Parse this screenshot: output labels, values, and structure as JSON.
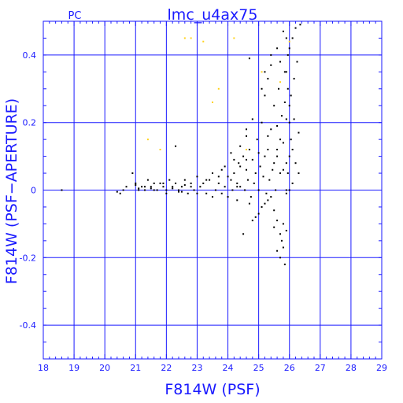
{
  "chart_data": {
    "type": "scatter",
    "title": "lmc_u4ax75",
    "subtitle": "PC",
    "xlabel": "F814W (PSF)",
    "ylabel": "F814W (PSF−APERTURE)",
    "xlim": [
      18,
      29
    ],
    "ylim": [
      -0.5,
      0.5
    ],
    "xticks": [
      "18",
      "19",
      "20",
      "21",
      "22",
      "23",
      "24",
      "25",
      "26",
      "27",
      "28",
      "29"
    ],
    "yticks": [
      "-0.4",
      "-0.2",
      "0",
      "0.2",
      "0.4"
    ],
    "grid": true,
    "colors": {
      "axis": "#1a1aff",
      "points": "#000000",
      "highlight": "#ffd21a",
      "background": "#ffffff"
    },
    "series": [
      {
        "color": "#000000",
        "points": [
          [
            18.6,
            0.0
          ],
          [
            20.4,
            -0.005
          ],
          [
            20.5,
            -0.01
          ],
          [
            20.6,
            0.0
          ],
          [
            20.7,
            0.01
          ],
          [
            20.9,
            0.05
          ],
          [
            21.0,
            0.02
          ],
          [
            21.1,
            0.0
          ],
          [
            21.2,
            0.01
          ],
          [
            21.3,
            0.0
          ],
          [
            21.4,
            0.03
          ],
          [
            21.5,
            0.01
          ],
          [
            21.6,
            0.02
          ],
          [
            21.7,
            0.0
          ],
          [
            21.8,
            0.02
          ],
          [
            21.9,
            0.01
          ],
          [
            22.0,
            0.0
          ],
          [
            22.1,
            0.03
          ],
          [
            22.2,
            0.01
          ],
          [
            22.3,
            0.02
          ],
          [
            22.4,
            0.0
          ],
          [
            22.5,
            0.01
          ],
          [
            22.6,
            0.03
          ],
          [
            22.7,
            -0.01
          ],
          [
            22.8,
            0.02
          ],
          [
            22.9,
            0.0
          ],
          [
            23.0,
            0.04
          ],
          [
            23.1,
            0.01
          ],
          [
            23.2,
            0.02
          ],
          [
            23.3,
            -0.01
          ],
          [
            23.4,
            0.03
          ],
          [
            23.5,
            0.05
          ],
          [
            23.6,
            0.0
          ],
          [
            23.7,
            0.02
          ],
          [
            23.8,
            0.06
          ],
          [
            23.9,
            0.01
          ],
          [
            24.0,
            0.04
          ],
          [
            24.1,
            0.03
          ],
          [
            24.15,
            0.0
          ],
          [
            24.2,
            0.05
          ],
          [
            24.3,
            0.02
          ],
          [
            24.35,
            0.08
          ],
          [
            24.4,
            0.01
          ],
          [
            24.5,
            0.1
          ],
          [
            24.55,
            0.0
          ],
          [
            24.6,
            0.06
          ],
          [
            24.65,
            0.03
          ],
          [
            24.7,
            0.12
          ],
          [
            24.75,
            -0.02
          ],
          [
            24.8,
            0.09
          ],
          [
            24.85,
            0.02
          ],
          [
            24.9,
            0.05
          ],
          [
            24.95,
            0.15
          ],
          [
            25.0,
            0.0
          ],
          [
            25.05,
            0.07
          ],
          [
            25.1,
            0.2
          ],
          [
            25.15,
            0.04
          ],
          [
            25.2,
            0.1
          ],
          [
            25.25,
            -0.01
          ],
          [
            25.3,
            0.12
          ],
          [
            25.35,
            0.03
          ],
          [
            25.4,
            0.18
          ],
          [
            25.45,
            0.06
          ],
          [
            25.5,
            0.25
          ],
          [
            25.55,
            0.0
          ],
          [
            25.6,
            0.1
          ],
          [
            25.65,
            0.3
          ],
          [
            25.7,
            0.05
          ],
          [
            25.75,
            0.22
          ],
          [
            25.8,
            0.14
          ],
          [
            25.85,
            0.35
          ],
          [
            25.9,
            0.08
          ],
          [
            25.95,
            0.4
          ],
          [
            26.0,
            0.2
          ],
          [
            26.05,
            0.28
          ],
          [
            26.1,
            0.45
          ],
          [
            26.15,
            0.33
          ],
          [
            26.2,
            0.48
          ],
          [
            26.25,
            0.38
          ],
          [
            26.3,
            0.17
          ],
          [
            26.35,
            0.49
          ],
          [
            22.3,
            0.13
          ],
          [
            24.1,
            0.11
          ],
          [
            24.3,
            0.01
          ],
          [
            24.6,
            0.18
          ],
          [
            25.2,
            0.28
          ],
          [
            25.4,
            0.37
          ],
          [
            25.8,
            0.47
          ],
          [
            25.9,
            0.45
          ],
          [
            24.5,
            -0.13
          ],
          [
            24.8,
            -0.09
          ],
          [
            25.0,
            -0.07
          ],
          [
            25.2,
            -0.04
          ],
          [
            25.5,
            -0.11
          ],
          [
            25.6,
            -0.18
          ],
          [
            25.7,
            -0.2
          ],
          [
            25.75,
            -0.15
          ],
          [
            25.8,
            -0.17
          ],
          [
            25.85,
            -0.22
          ],
          [
            25.9,
            -0.12
          ],
          [
            25.5,
            -0.06
          ],
          [
            25.3,
            -0.03
          ],
          [
            24.9,
            -0.08
          ],
          [
            25.1,
            -0.05
          ],
          [
            25.6,
            -0.09
          ],
          [
            25.7,
            -0.13
          ],
          [
            25.8,
            -0.1
          ],
          [
            25.4,
            -0.02
          ],
          [
            24.7,
            -0.04
          ],
          [
            24.3,
            -0.03
          ],
          [
            24.0,
            -0.02
          ],
          [
            23.8,
            -0.01
          ],
          [
            23.5,
            -0.02
          ],
          [
            23.0,
            -0.01
          ],
          [
            22.5,
            -0.005
          ],
          [
            22.0,
            -0.01
          ],
          [
            21.5,
            0.005
          ],
          [
            24.4,
            0.07
          ],
          [
            24.6,
            0.09
          ],
          [
            25.0,
            0.11
          ],
          [
            25.3,
            0.16
          ],
          [
            25.6,
            0.19
          ],
          [
            25.9,
            0.21
          ],
          [
            26.0,
            0.25
          ],
          [
            25.95,
            0.3
          ],
          [
            25.85,
            0.26
          ],
          [
            25.7,
            0.15
          ],
          [
            25.6,
            0.12
          ],
          [
            25.5,
            0.08
          ],
          [
            25.8,
            0.06
          ],
          [
            26.0,
            0.1
          ],
          [
            26.1,
            0.12
          ],
          [
            26.2,
            0.08
          ],
          [
            26.3,
            0.05
          ],
          [
            26.0,
            0.0
          ],
          [
            26.1,
            0.02
          ],
          [
            25.9,
            -0.01
          ],
          [
            24.8,
            0.21
          ],
          [
            24.6,
            0.16
          ],
          [
            24.4,
            0.13
          ],
          [
            24.2,
            0.09
          ],
          [
            23.9,
            0.07
          ],
          [
            23.7,
            0.04
          ],
          [
            23.3,
            0.03
          ],
          [
            22.8,
            0.01
          ],
          [
            22.6,
            0.015
          ],
          [
            22.4,
            -0.005
          ],
          [
            22.2,
            0.005
          ],
          [
            21.9,
            0.02
          ],
          [
            21.6,
            0.0
          ],
          [
            21.3,
            0.01
          ],
          [
            21.1,
            0.005
          ],
          [
            21.0,
            0.015
          ],
          [
            25.2,
            0.35
          ],
          [
            25.3,
            0.33
          ],
          [
            25.1,
            0.3
          ],
          [
            25.4,
            0.4
          ],
          [
            25.6,
            0.42
          ],
          [
            25.7,
            0.38
          ],
          [
            25.9,
            0.35
          ],
          [
            26.0,
            0.42
          ],
          [
            24.7,
            0.39
          ],
          [
            25.9,
            0.0
          ],
          [
            25.95,
            0.05
          ],
          [
            26.05,
            0.15
          ],
          [
            26.15,
            0.21
          ]
        ]
      },
      {
        "color": "#ffd21a",
        "points": [
          [
            21.4,
            0.15
          ],
          [
            21.8,
            0.12
          ],
          [
            22.6,
            0.45
          ],
          [
            22.8,
            0.45
          ],
          [
            23.2,
            0.44
          ],
          [
            23.5,
            0.26
          ],
          [
            23.7,
            0.3
          ],
          [
            24.2,
            0.45
          ],
          [
            24.6,
            0.12
          ],
          [
            25.1,
            0.35
          ],
          [
            25.7,
            0.32
          ],
          [
            26.0,
            0.44
          ]
        ]
      }
    ]
  }
}
